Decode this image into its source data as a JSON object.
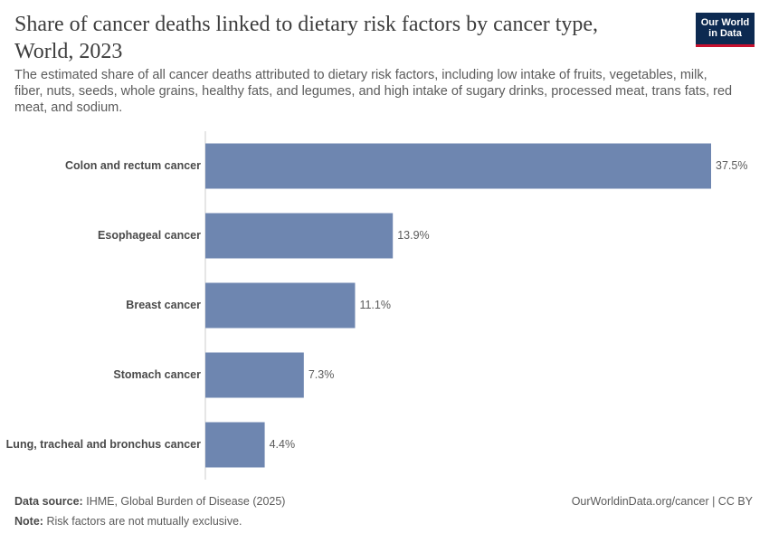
{
  "header": {
    "title": "Share of cancer deaths linked to dietary risk factors by cancer type, World, 2023",
    "subtitle": "The estimated share of all cancer deaths attributed to dietary risk factors, including low intake of fruits, vegetables, milk, fiber, nuts, seeds, whole grains, healthy fats, and legumes, and high intake of sugary drinks, processed meat, trans fats, red meat, and sodium.",
    "logo": [
      "Our World",
      "in Data"
    ]
  },
  "chart_data": {
    "type": "bar",
    "orientation": "horizontal",
    "categories": [
      "Colon and rectum cancer",
      "Esophageal cancer",
      "Breast cancer",
      "Stomach cancer",
      "Lung, tracheal and bronchus cancer"
    ],
    "values": [
      37.5,
      13.9,
      11.1,
      7.3,
      4.4
    ],
    "value_labels": [
      "37.5%",
      "13.9%",
      "11.1%",
      "7.3%",
      "4.4%"
    ],
    "color": "#6e86b0",
    "xlim": [
      0,
      37.5
    ]
  },
  "footer": {
    "source_label": "Data source:",
    "source": "IHME, Global Burden of Disease (2025)",
    "note_label": "Note:",
    "note": "Risk factors are not mutually exclusive.",
    "link": "OurWorldinData.org/cancer | CC BY"
  }
}
